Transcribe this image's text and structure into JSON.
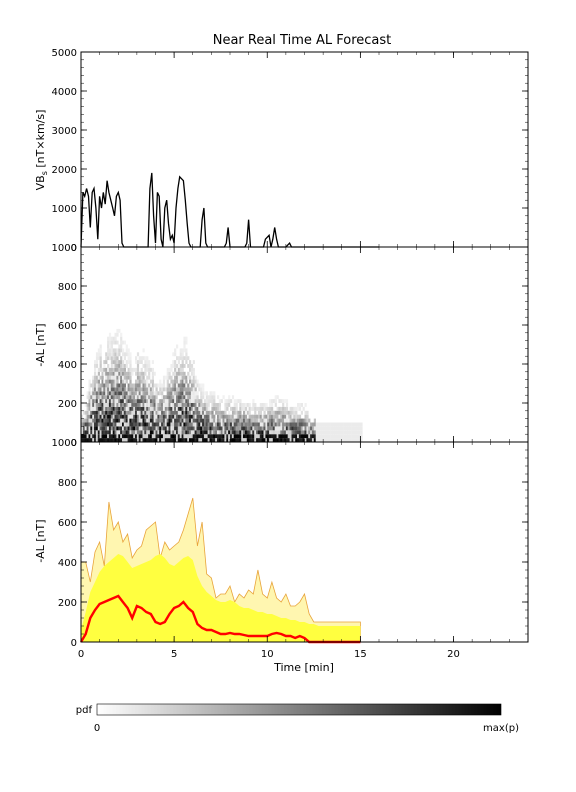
{
  "chart_data": [
    {
      "panel": "top",
      "type": "line",
      "title": "Near Real Time AL Forecast",
      "ylabel_main": "VB",
      "ylabel_sub": "s",
      "ylabel_rest": " [nT×km/s]",
      "xlim": [
        0,
        24
      ],
      "ylim": [
        0,
        5000
      ],
      "yticks": [
        "0",
        "1000",
        "2000",
        "3000",
        "4000",
        "5000"
      ],
      "series": [
        {
          "color": "#000000",
          "x": [
            0.0,
            0.1,
            0.2,
            0.3,
            0.4,
            0.5,
            0.6,
            0.7,
            0.8,
            0.9,
            1.0,
            1.1,
            1.2,
            1.3,
            1.4,
            1.5,
            1.6,
            1.7,
            1.8,
            1.9,
            2.0,
            2.1,
            2.2,
            2.3,
            2.4,
            2.5,
            2.6,
            2.7,
            2.8,
            2.9,
            3.0,
            3.1,
            3.2,
            3.3,
            3.4,
            3.5,
            3.6,
            3.7,
            3.8,
            3.9,
            4.0,
            4.1,
            4.2,
            4.3,
            4.4,
            4.5,
            4.6,
            4.7,
            4.8,
            4.9,
            5.0,
            5.1,
            5.2,
            5.3,
            5.4,
            5.5,
            5.6,
            5.7,
            5.8,
            5.9,
            6.0,
            6.1,
            6.2,
            6.3,
            6.4,
            6.5,
            6.6,
            6.7,
            6.8,
            6.9,
            7.0,
            7.5,
            7.7,
            7.8,
            7.9,
            8.0,
            8.5,
            8.8,
            8.9,
            9.0,
            9.1,
            9.5,
            9.7,
            9.8,
            9.9,
            10.1,
            10.2,
            10.3,
            10.4,
            10.5,
            10.6,
            10.8,
            11.0,
            11.1,
            11.2,
            11.3,
            11.4,
            12.0,
            13.0,
            14.0,
            15.0,
            16.0
          ],
          "y": [
            0,
            1400,
            1300,
            1500,
            1300,
            500,
            1400,
            1500,
            1000,
            200,
            1300,
            1000,
            1400,
            1100,
            1700,
            1400,
            1200,
            1000,
            800,
            1300,
            1400,
            1200,
            100,
            0,
            0,
            0,
            0,
            0,
            0,
            0,
            0,
            0,
            0,
            0,
            0,
            0,
            0,
            1500,
            1900,
            800,
            100,
            1400,
            1300,
            200,
            0,
            1000,
            1200,
            600,
            200,
            300,
            100,
            1000,
            1500,
            1800,
            1750,
            1700,
            1200,
            600,
            100,
            0,
            0,
            0,
            0,
            0,
            0,
            700,
            1000,
            100,
            0,
            0,
            0,
            0,
            0,
            100,
            500,
            0,
            0,
            0,
            100,
            700,
            0,
            0,
            0,
            0,
            200,
            300,
            0,
            200,
            500,
            200,
            0,
            0,
            0,
            50,
            100,
            0,
            0,
            0,
            0,
            0,
            0,
            0
          ]
        }
      ]
    },
    {
      "panel": "middle",
      "type": "heatmap",
      "ylabel": "-AL [nT]",
      "xlim": [
        0,
        24
      ],
      "ylim": [
        0,
        1000
      ],
      "yticks": [
        "0",
        "200",
        "400",
        "600",
        "800",
        "1000"
      ],
      "note": "probability density of forecast -AL (grayscale, dark = high)"
    },
    {
      "panel": "bottom",
      "type": "area",
      "ylabel": "-AL [nT]",
      "xlabel": "Time [min]",
      "xlim": [
        0,
        24
      ],
      "ylim": [
        0,
        1000
      ],
      "xticks": [
        "0",
        "5",
        "10",
        "15",
        "20"
      ],
      "yticks": [
        "0",
        "200",
        "400",
        "600",
        "800",
        "1000"
      ],
      "x": [
        0.0,
        0.25,
        0.5,
        0.75,
        1.0,
        1.25,
        1.5,
        1.75,
        2.0,
        2.25,
        2.5,
        2.75,
        3.0,
        3.25,
        3.5,
        3.75,
        4.0,
        4.25,
        4.5,
        4.75,
        5.0,
        5.25,
        5.5,
        5.75,
        6.0,
        6.25,
        6.5,
        6.75,
        7.0,
        7.25,
        7.5,
        7.75,
        8.0,
        8.25,
        8.5,
        8.75,
        9.0,
        9.25,
        9.5,
        9.75,
        10.0,
        10.25,
        10.5,
        10.75,
        11.0,
        11.25,
        11.5,
        11.75,
        12.0,
        12.25,
        12.5,
        12.75,
        13.0,
        13.5,
        14.0,
        14.5,
        15.0
      ],
      "series": [
        {
          "name": "max",
          "color": "#e8a33a",
          "values": [
            400,
            400,
            300,
            450,
            500,
            380,
            700,
            560,
            600,
            500,
            540,
            420,
            460,
            480,
            560,
            580,
            600,
            420,
            500,
            460,
            480,
            500,
            560,
            640,
            720,
            480,
            600,
            340,
            320,
            220,
            240,
            240,
            280,
            200,
            240,
            220,
            260,
            240,
            360,
            240,
            220,
            300,
            220,
            200,
            240,
            180,
            180,
            200,
            240,
            140,
            100,
            100,
            100,
            100,
            100,
            100,
            100
          ]
        },
        {
          "name": "upper",
          "color": "#ffff40",
          "values": [
            60,
            150,
            250,
            300,
            350,
            380,
            400,
            420,
            440,
            430,
            400,
            370,
            380,
            390,
            400,
            410,
            430,
            440,
            420,
            390,
            380,
            400,
            420,
            430,
            410,
            330,
            280,
            250,
            230,
            210,
            200,
            200,
            210,
            200,
            180,
            170,
            170,
            160,
            150,
            150,
            140,
            140,
            130,
            120,
            120,
            110,
            110,
            100,
            100,
            90,
            90,
            80,
            80,
            80,
            80,
            80,
            80
          ]
        },
        {
          "name": "median",
          "color": "#ff0000",
          "values": [
            0,
            40,
            120,
            160,
            190,
            200,
            210,
            220,
            230,
            200,
            170,
            120,
            180,
            170,
            150,
            140,
            100,
            90,
            100,
            140,
            170,
            180,
            200,
            170,
            150,
            90,
            70,
            60,
            60,
            50,
            40,
            40,
            45,
            40,
            40,
            35,
            30,
            30,
            30,
            30,
            30,
            40,
            45,
            40,
            30,
            30,
            20,
            30,
            20,
            0,
            0,
            0,
            0,
            0,
            0,
            0,
            0
          ]
        }
      ]
    },
    {
      "panel": "colorbar",
      "type": "colorbar",
      "label": "pdf",
      "min_label": "0",
      "max_label": "max(p)"
    }
  ]
}
